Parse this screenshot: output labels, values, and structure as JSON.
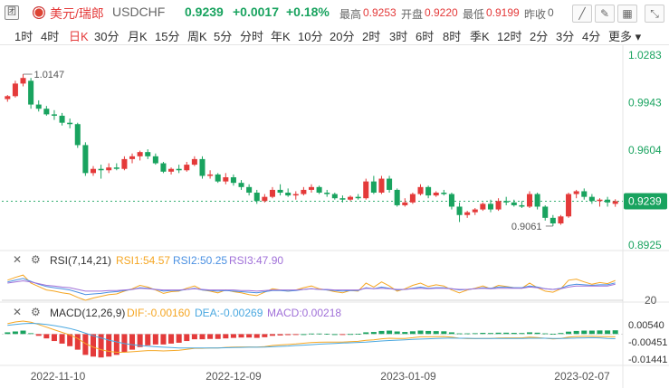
{
  "header": {
    "tuan_icon": "团",
    "pair": "美元/瑞郎",
    "symbol": "USDCHF",
    "price": "0.9239",
    "change": "+0.0017",
    "change_pct": "+0.18%",
    "high_label": "最高",
    "high": "0.9253",
    "open_label": "开盘",
    "open": "0.9220",
    "low_label": "最低",
    "low": "0.9199",
    "prev_label": "昨收",
    "prev_partial": "0",
    "icons": [
      "draw-line-icon",
      "pen-icon",
      "fullscreen-icon"
    ]
  },
  "tabs": [
    "1时",
    "4时",
    "日K",
    "30分",
    "月K",
    "15分",
    "周K",
    "5分",
    "分时",
    "年K",
    "10分",
    "20分",
    "2时",
    "3时",
    "6时",
    "8时",
    "季K",
    "12时",
    "2分",
    "3分",
    "4分",
    "更多"
  ],
  "active_tab": "日K",
  "colors": {
    "up": "#e43a3a",
    "down": "#19a35f",
    "rsi1": "#f5a623",
    "rsi2": "#4a90e2",
    "rsi3": "#a070d8",
    "dif": "#f5a623",
    "dea": "#4aa8e0",
    "macd_up": "#e43a3a",
    "macd_down": "#19a35f"
  },
  "chart_data": {
    "type": "candlestick",
    "y_ticks": [
      "1.0283",
      "0.9943",
      "0.9604",
      "0.9239",
      "0.8925"
    ],
    "current_price": "0.9239",
    "max_label": "1.0147",
    "min_label": "0.9061",
    "x_ticks": [
      "2022-11-10",
      "2022-12-09",
      "2023-01-09",
      "2023-02-07"
    ],
    "ohlc": [
      [
        0.9969,
        0.9998,
        0.995,
        0.999
      ],
      [
        0.999,
        1.01,
        0.998,
        1.008
      ],
      [
        1.008,
        1.0147,
        1.006,
        1.012
      ],
      [
        1.01,
        1.012,
        0.99,
        0.993
      ],
      [
        0.993,
        0.996,
        0.988,
        0.99
      ],
      [
        0.99,
        0.992,
        0.985,
        0.986
      ],
      [
        0.986,
        0.989,
        0.982,
        0.985
      ],
      [
        0.985,
        0.987,
        0.978,
        0.98
      ],
      [
        0.98,
        0.983,
        0.976,
        0.979
      ],
      [
        0.979,
        0.98,
        0.962,
        0.964
      ],
      [
        0.964,
        0.966,
        0.942,
        0.944
      ],
      [
        0.944,
        0.949,
        0.942,
        0.947
      ],
      [
        0.947,
        0.95,
        0.94,
        0.946
      ],
      [
        0.946,
        0.951,
        0.944,
        0.948
      ],
      [
        0.948,
        0.951,
        0.946,
        0.947
      ],
      [
        0.947,
        0.956,
        0.946,
        0.954
      ],
      [
        0.954,
        0.958,
        0.951,
        0.956
      ],
      [
        0.956,
        0.96,
        0.953,
        0.959
      ],
      [
        0.959,
        0.961,
        0.954,
        0.956
      ],
      [
        0.956,
        0.958,
        0.95,
        0.951
      ],
      [
        0.951,
        0.952,
        0.944,
        0.945
      ],
      [
        0.945,
        0.948,
        0.943,
        0.947
      ],
      [
        0.947,
        0.95,
        0.944,
        0.946
      ],
      [
        0.946,
        0.952,
        0.945,
        0.95
      ],
      [
        0.95,
        0.956,
        0.949,
        0.954
      ],
      [
        0.954,
        0.956,
        0.94,
        0.942
      ],
      [
        0.942,
        0.946,
        0.94,
        0.943
      ],
      [
        0.943,
        0.944,
        0.937,
        0.938
      ],
      [
        0.938,
        0.944,
        0.936,
        0.941
      ],
      [
        0.941,
        0.943,
        0.935,
        0.937
      ],
      [
        0.937,
        0.939,
        0.932,
        0.934
      ],
      [
        0.934,
        0.936,
        0.928,
        0.93
      ],
      [
        0.93,
        0.932,
        0.922,
        0.924
      ],
      [
        0.924,
        0.929,
        0.923,
        0.927
      ],
      [
        0.927,
        0.934,
        0.926,
        0.932
      ],
      [
        0.932,
        0.936,
        0.928,
        0.93
      ],
      [
        0.93,
        0.933,
        0.927,
        0.928
      ],
      [
        0.928,
        0.931,
        0.925,
        0.929
      ],
      [
        0.929,
        0.934,
        0.928,
        0.932
      ],
      [
        0.932,
        0.936,
        0.93,
        0.934
      ],
      [
        0.934,
        0.935,
        0.929,
        0.93
      ],
      [
        0.93,
        0.932,
        0.927,
        0.929
      ],
      [
        0.929,
        0.93,
        0.925,
        0.926
      ],
      [
        0.926,
        0.928,
        0.923,
        0.925
      ],
      [
        0.925,
        0.928,
        0.924,
        0.927
      ],
      [
        0.927,
        0.929,
        0.925,
        0.926
      ],
      [
        0.926,
        0.94,
        0.925,
        0.938
      ],
      [
        0.938,
        0.942,
        0.929,
        0.93
      ],
      [
        0.93,
        0.942,
        0.929,
        0.94
      ],
      [
        0.94,
        0.942,
        0.93,
        0.932
      ],
      [
        0.932,
        0.933,
        0.92,
        0.921
      ],
      [
        0.921,
        0.926,
        0.92,
        0.923
      ],
      [
        0.923,
        0.93,
        0.922,
        0.929
      ],
      [
        0.929,
        0.936,
        0.928,
        0.934
      ],
      [
        0.934,
        0.935,
        0.926,
        0.928
      ],
      [
        0.928,
        0.931,
        0.927,
        0.93
      ],
      [
        0.93,
        0.932,
        0.928,
        0.929
      ],
      [
        0.929,
        0.93,
        0.918,
        0.92
      ],
      [
        0.92,
        0.923,
        0.909,
        0.914
      ],
      [
        0.914,
        0.917,
        0.912,
        0.916
      ],
      [
        0.916,
        0.919,
        0.914,
        0.918
      ],
      [
        0.918,
        0.923,
        0.917,
        0.922
      ],
      [
        0.922,
        0.925,
        0.916,
        0.918
      ],
      [
        0.918,
        0.926,
        0.917,
        0.924
      ],
      [
        0.924,
        0.927,
        0.921,
        0.923
      ],
      [
        0.923,
        0.925,
        0.92,
        0.921
      ],
      [
        0.921,
        0.924,
        0.919,
        0.92
      ],
      [
        0.92,
        0.931,
        0.919,
        0.929
      ],
      [
        0.929,
        0.93,
        0.918,
        0.92
      ],
      [
        0.92,
        0.921,
        0.91,
        0.912
      ],
      [
        0.912,
        0.914,
        0.9061,
        0.908
      ],
      [
        0.908,
        0.914,
        0.907,
        0.913
      ],
      [
        0.913,
        0.93,
        0.912,
        0.929
      ],
      [
        0.929,
        0.932,
        0.926,
        0.931
      ],
      [
        0.931,
        0.933,
        0.925,
        0.927
      ],
      [
        0.927,
        0.929,
        0.922,
        0.924
      ],
      [
        0.924,
        0.926,
        0.92,
        0.925
      ],
      [
        0.925,
        0.927,
        0.92,
        0.923
      ],
      [
        0.922,
        0.9253,
        0.9199,
        0.9239
      ]
    ],
    "rsi": {
      "params": "RSI(7,14,21)",
      "rsi1_label": "RSI1:54.57",
      "rsi2_label": "RSI2:50.25",
      "rsi3_label": "RSI3:47.90",
      "ref_line": "20",
      "rsi1": [
        55,
        60,
        64,
        50,
        44,
        38,
        36,
        33,
        31,
        25,
        20,
        24,
        27,
        30,
        31,
        36,
        40,
        46,
        43,
        38,
        32,
        35,
        36,
        41,
        45,
        38,
        36,
        33,
        38,
        35,
        33,
        30,
        28,
        34,
        40,
        38,
        36,
        38,
        42,
        45,
        40,
        38,
        35,
        33,
        37,
        36,
        50,
        43,
        52,
        45,
        36,
        40,
        46,
        50,
        44,
        47,
        45,
        38,
        33,
        38,
        41,
        45,
        40,
        46,
        44,
        42,
        41,
        50,
        42,
        36,
        34,
        40,
        55,
        57,
        52,
        48,
        51,
        49,
        54.57
      ],
      "rsi2": [
        52,
        55,
        58,
        53,
        48,
        44,
        42,
        40,
        38,
        34,
        30,
        31,
        32,
        34,
        35,
        37,
        39,
        42,
        41,
        39,
        36,
        37,
        37,
        39,
        41,
        38,
        37,
        36,
        37,
        36,
        35,
        34,
        33,
        35,
        37,
        37,
        36,
        37,
        39,
        40,
        39,
        38,
        37,
        36,
        37,
        37,
        42,
        40,
        43,
        41,
        38,
        39,
        41,
        43,
        41,
        42,
        42,
        40,
        38,
        39,
        40,
        42,
        41,
        43,
        43,
        42,
        42,
        45,
        43,
        40,
        39,
        41,
        46,
        48,
        47,
        46,
        47,
        47,
        50.25
      ],
      "rsi3": [
        50,
        52,
        54,
        52,
        49,
        46,
        45,
        43,
        42,
        39,
        36,
        36,
        36,
        37,
        37,
        38,
        39,
        41,
        40,
        39,
        38,
        38,
        38,
        39,
        40,
        39,
        38,
        38,
        38,
        38,
        37,
        37,
        36,
        37,
        38,
        38,
        38,
        38,
        39,
        40,
        39,
        39,
        38,
        38,
        38,
        38,
        41,
        40,
        41,
        40,
        39,
        39,
        40,
        41,
        40,
        41,
        41,
        40,
        39,
        39,
        40,
        41,
        40,
        41,
        41,
        41,
        41,
        43,
        42,
        40,
        39,
        40,
        43,
        45,
        45,
        45,
        45,
        45,
        47.9
      ]
    },
    "macd": {
      "params": "MACD(12,26,9)",
      "dif_label": "DIF:-0.00160",
      "dea_label": "DEA:-0.00269",
      "macd_label": "MACD:0.00218",
      "y_ticks": [
        "0.00540",
        "-0.00451",
        "-0.01441"
      ],
      "ylim": [
        -0.0165,
        0.0075
      ],
      "hist": [
        0.001,
        0.0015,
        0.002,
        0.0005,
        -0.001,
        -0.0025,
        -0.004,
        -0.0055,
        -0.007,
        -0.009,
        -0.012,
        -0.013,
        -0.0135,
        -0.013,
        -0.012,
        -0.0105,
        -0.009,
        -0.0075,
        -0.0065,
        -0.006,
        -0.006,
        -0.0055,
        -0.005,
        -0.004,
        -0.003,
        -0.003,
        -0.0028,
        -0.0028,
        -0.0025,
        -0.0022,
        -0.002,
        -0.002,
        -0.0022,
        -0.0018,
        -0.001,
        -0.0008,
        -0.0006,
        -0.0004,
        0.0,
        0.0003,
        0.0003,
        0.0002,
        0.0,
        -0.0002,
        0.0001,
        0.0002,
        0.001,
        0.0012,
        0.0018,
        0.002,
        0.0015,
        0.0012,
        0.0016,
        0.002,
        0.0018,
        0.0017,
        0.0016,
        0.001,
        0.0004,
        0.0004,
        0.0005,
        0.0007,
        0.0006,
        0.0008,
        0.0008,
        0.0007,
        0.0006,
        0.001,
        0.0008,
        0.0004,
        0.0002,
        0.0006,
        0.0014,
        0.0018,
        0.002,
        0.002,
        0.0021,
        0.0021,
        0.00218
      ],
      "dif": [
        0.006,
        0.007,
        0.0075,
        0.0068,
        0.0055,
        0.004,
        0.0025,
        0.001,
        -0.0005,
        -0.0025,
        -0.0055,
        -0.0075,
        -0.009,
        -0.01,
        -0.0105,
        -0.0105,
        -0.0102,
        -0.0098,
        -0.0095,
        -0.0095,
        -0.0097,
        -0.0095,
        -0.0093,
        -0.0088,
        -0.0082,
        -0.0082,
        -0.008,
        -0.008,
        -0.0077,
        -0.0075,
        -0.0074,
        -0.0074,
        -0.0075,
        -0.0072,
        -0.0066,
        -0.0063,
        -0.006,
        -0.0057,
        -0.0053,
        -0.0049,
        -0.0047,
        -0.0046,
        -0.0046,
        -0.0046,
        -0.0044,
        -0.0042,
        -0.0036,
        -0.0033,
        -0.0027,
        -0.0024,
        -0.0025,
        -0.0025,
        -0.0021,
        -0.0016,
        -0.0016,
        -0.0015,
        -0.0014,
        -0.0018,
        -0.0024,
        -0.0026,
        -0.0026,
        -0.0025,
        -0.0025,
        -0.0023,
        -0.0022,
        -0.0022,
        -0.0022,
        -0.0018,
        -0.002,
        -0.0024,
        -0.0028,
        -0.0025,
        -0.0018,
        -0.0014,
        -0.0013,
        -0.0013,
        -0.0014,
        -0.0015,
        -0.0016
      ],
      "dea": [
        0.005,
        0.0055,
        0.006,
        0.0062,
        0.006,
        0.0055,
        0.0049,
        0.0041,
        0.0032,
        0.002,
        0.0005,
        -0.001,
        -0.0022,
        -0.0035,
        -0.0045,
        -0.0055,
        -0.0061,
        -0.0066,
        -0.007,
        -0.0073,
        -0.0076,
        -0.0078,
        -0.008,
        -0.008,
        -0.008,
        -0.008,
        -0.008,
        -0.008,
        -0.0079,
        -0.0078,
        -0.0077,
        -0.0076,
        -0.0076,
        -0.0075,
        -0.0073,
        -0.0071,
        -0.0069,
        -0.0066,
        -0.0064,
        -0.0061,
        -0.0058,
        -0.0056,
        -0.0054,
        -0.0052,
        -0.005,
        -0.0048,
        -0.0046,
        -0.0043,
        -0.004,
        -0.0037,
        -0.0035,
        -0.0033,
        -0.0031,
        -0.0029,
        -0.0027,
        -0.0025,
        -0.0024,
        -0.0023,
        -0.0024,
        -0.0024,
        -0.0025,
        -0.0025,
        -0.0025,
        -0.0025,
        -0.0025,
        -0.0025,
        -0.0025,
        -0.0024,
        -0.0024,
        -0.0024,
        -0.0025,
        -0.0025,
        -0.0024,
        -0.0023,
        -0.0022,
        -0.0021,
        -0.0022,
        -0.0025,
        -0.00269
      ]
    }
  }
}
